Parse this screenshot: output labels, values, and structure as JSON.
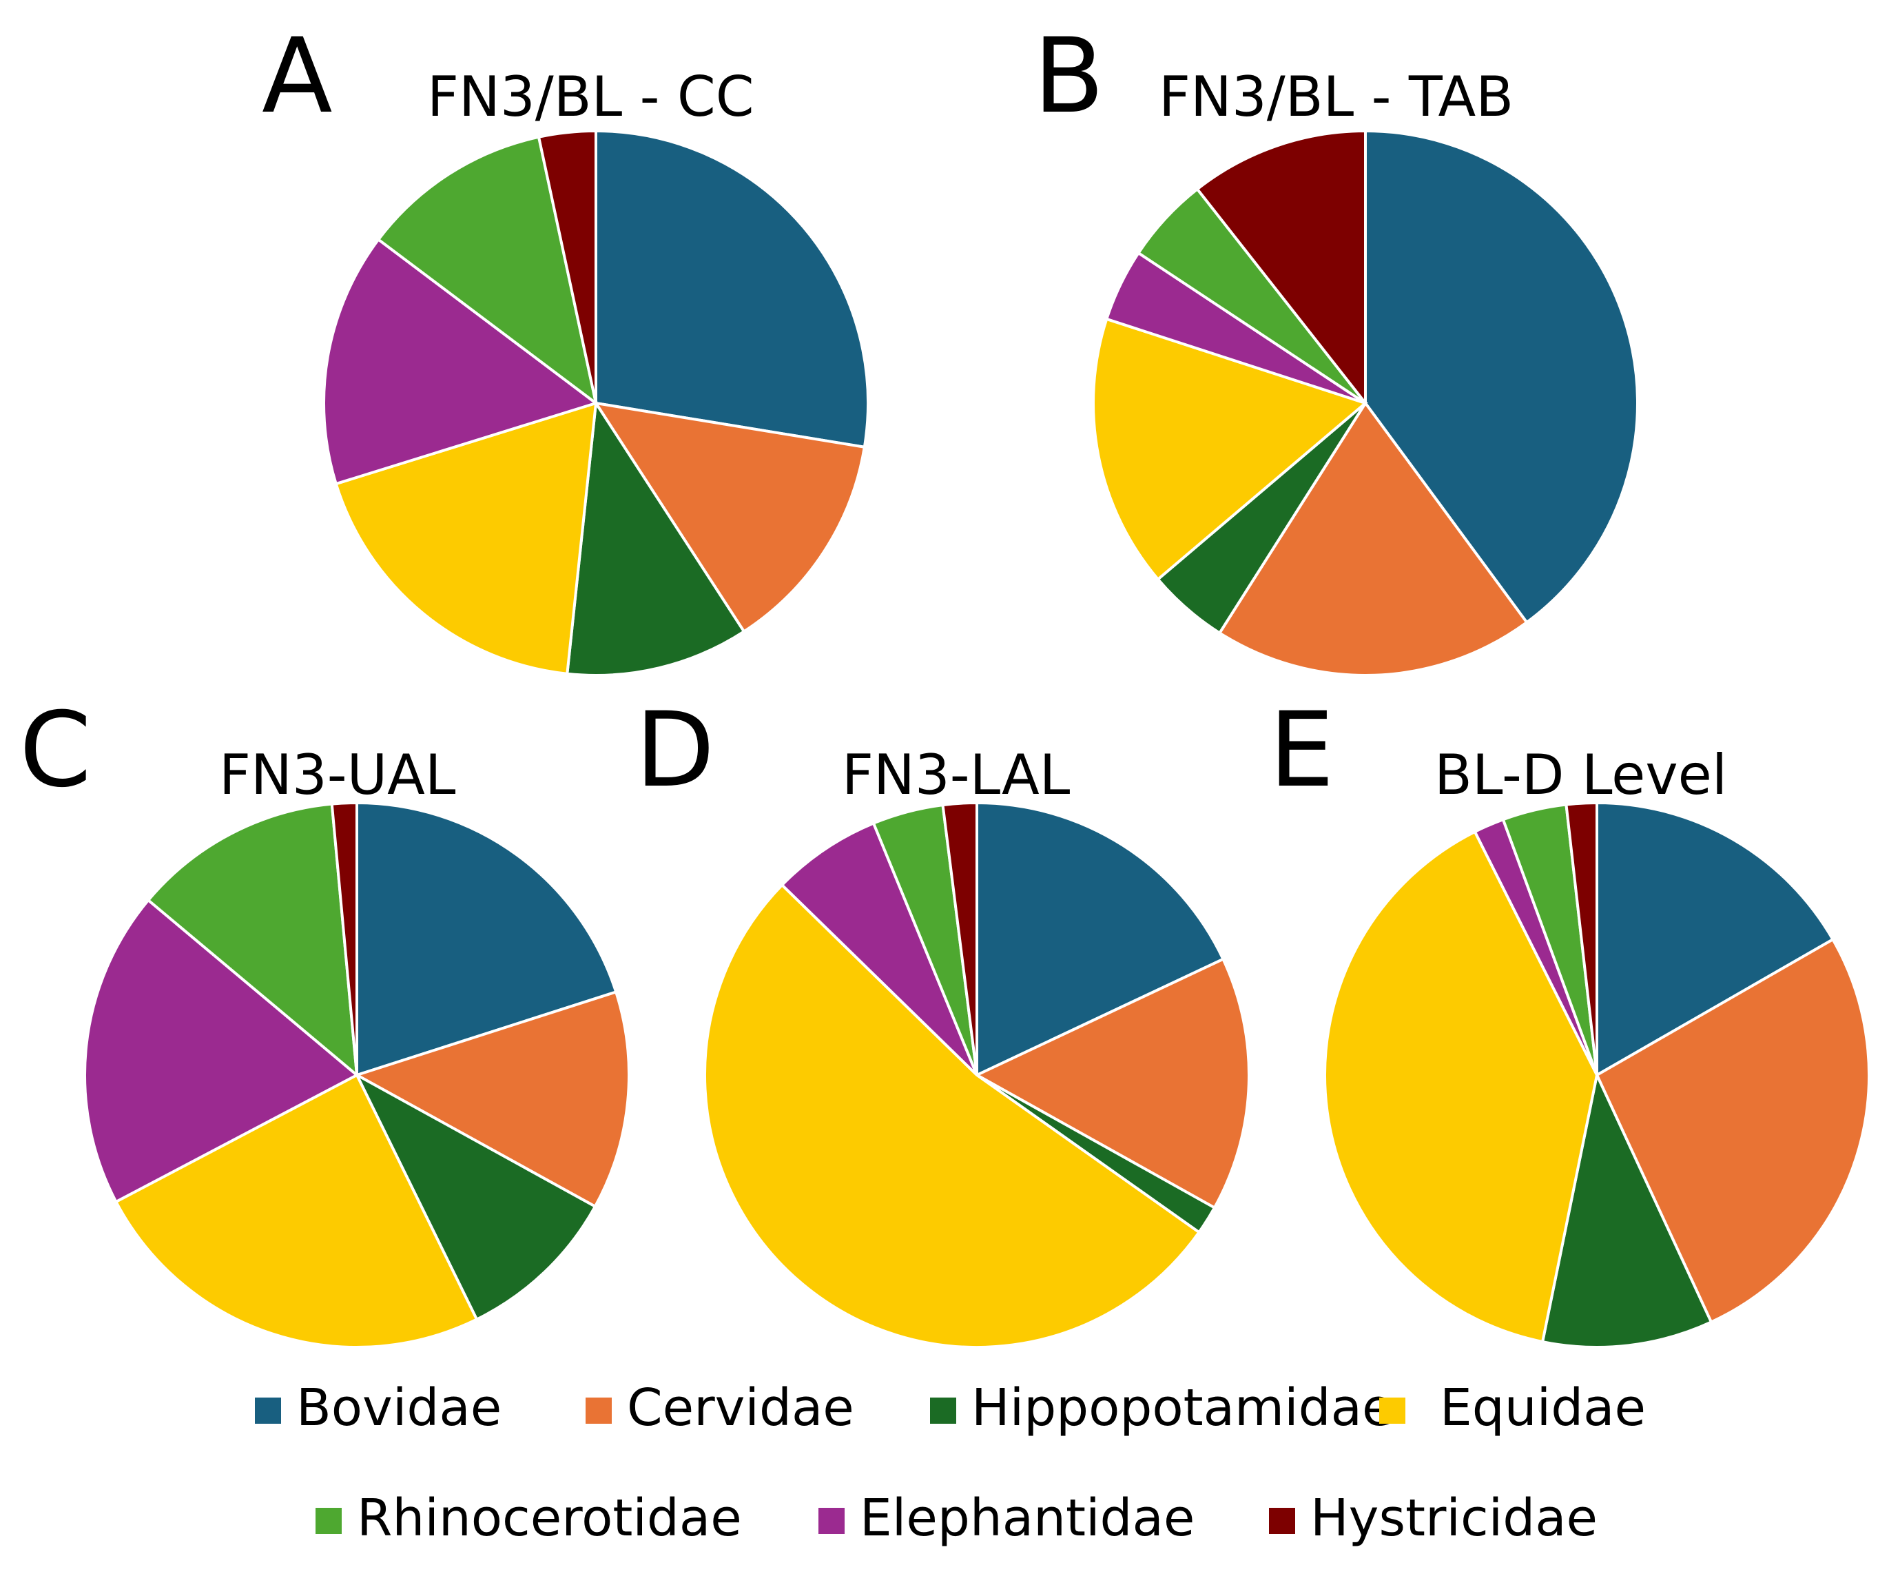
{
  "chart_data": [
    {
      "type": "pie",
      "panel": "A",
      "title": "FN3/BL - CC",
      "categories": [
        "Bovidae",
        "Cervidae",
        "Hippopotamidae",
        "Equidae",
        "Elephantidae",
        "Rhinocerotidae",
        "Hystricidae"
      ],
      "values": [
        26.2,
        12.6,
        10.3,
        17.6,
        14.3,
        10.8,
        3.2
      ]
    },
    {
      "type": "pie",
      "panel": "B",
      "title": "FN3/BL - TAB",
      "categories": [
        "Bovidae",
        "Cervidae",
        "Hippopotamidae",
        "Equidae",
        "Elephantidae",
        "Rhinocerotidae",
        "Hystricidae"
      ],
      "values": [
        39.9,
        19.1,
        4.8,
        16.2,
        4.3,
        5.1,
        10.6
      ]
    },
    {
      "type": "pie",
      "panel": "C",
      "title": "FN3-UAL",
      "categories": [
        "Bovidae",
        "Cervidae",
        "Hippopotamidae",
        "Equidae",
        "Elephantidae",
        "Rhinocerotidae",
        "Hystricidae"
      ],
      "values": [
        19.2,
        12.4,
        9.3,
        23.5,
        18.0,
        11.9,
        1.4
      ]
    },
    {
      "type": "pie",
      "panel": "D",
      "title": "FN3-LAL",
      "categories": [
        "Bovidae",
        "Cervidae",
        "Hippopotamidae",
        "Equidae",
        "Elephantidae",
        "Rhinocerotidae",
        "Hystricidae"
      ],
      "values": [
        18.0,
        15.1,
        1.7,
        52.5,
        6.5,
        4.2,
        2.0
      ]
    },
    {
      "type": "pie",
      "panel": "E",
      "title": "BL-D Level",
      "categories": [
        "Bovidae",
        "Cervidae",
        "Hippopotamidae",
        "Equidae",
        "Elephantidae",
        "Rhinocerotidae",
        "Hystricidae"
      ],
      "values": [
        16.7,
        26.4,
        10.1,
        39.4,
        1.8,
        3.8,
        1.8
      ]
    }
  ],
  "legend": [
    {
      "label": "Bovidae",
      "color": "#185f80"
    },
    {
      "label": "Cervidae",
      "color": "#e97334"
    },
    {
      "label": "Hippopotamidae",
      "color": "#1b6b24"
    },
    {
      "label": "Equidae",
      "color": "#fdcb00"
    },
    {
      "label": "Rhinocerotidae",
      "color": "#4ea830"
    },
    {
      "label": "Elephantidae",
      "color": "#9b2a90"
    },
    {
      "label": "Hystricidae",
      "color": "#7d0000"
    }
  ],
  "colors": {
    "Bovidae": "#185f80",
    "Cervidae": "#e97334",
    "Hippopotamidae": "#1b6b24",
    "Equidae": "#fdcb00",
    "Elephantidae": "#9b2a90",
    "Rhinocerotidae": "#4ea830",
    "Hystricidae": "#7d0000"
  }
}
